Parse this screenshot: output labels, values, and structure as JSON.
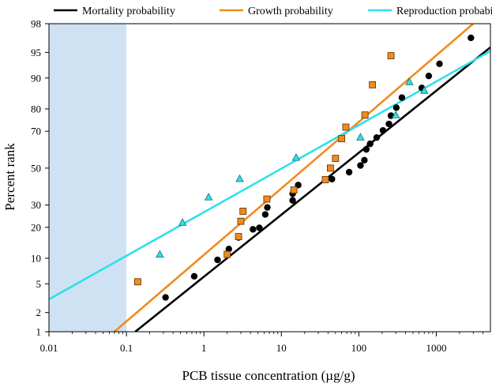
{
  "chart_data": {
    "type": "scatter",
    "title": "",
    "xlabel": "PCB tissue concentration (µg/g)",
    "ylabel": "Percent rank",
    "x_scale": "log",
    "y_scale": "probability",
    "xlim": [
      0.01,
      5000
    ],
    "ylim": [
      1,
      98
    ],
    "x_ticks": [
      0.01,
      0.1,
      1,
      10,
      100,
      1000
    ],
    "x_tick_labels": [
      "0.01",
      "0.1",
      "1",
      "10",
      "100",
      "1000"
    ],
    "y_ticks": [
      1,
      2,
      5,
      10,
      20,
      30,
      50,
      70,
      80,
      90,
      95,
      98
    ],
    "y_tick_labels": [
      "1",
      "2",
      "5",
      "10",
      "20",
      "30",
      "50",
      "70",
      "80",
      "90",
      "95",
      "98"
    ],
    "shaded_region": {
      "x": [
        0.01,
        0.1
      ],
      "color": "#cfe2f3"
    },
    "legend_position": "top",
    "legend": [
      {
        "label": "Mortality probability",
        "color": "#000000"
      },
      {
        "label": "Growth probability",
        "color": "#f28a1e"
      },
      {
        "label": "Reproduction probability",
        "color": "#2ee0e8"
      }
    ],
    "series": [
      {
        "name": "Mortality probability",
        "marker": "circle",
        "color": "#000000",
        "points": [
          [
            0.32,
            3.3
          ],
          [
            0.75,
            6.2
          ],
          [
            1.5,
            9.6
          ],
          [
            2.1,
            12.5
          ],
          [
            2.8,
            16.2
          ],
          [
            4.3,
            19.2
          ],
          [
            5.2,
            19.8
          ],
          [
            6.2,
            25.5
          ],
          [
            6.6,
            28.8
          ],
          [
            14,
            32.3
          ],
          [
            14,
            35.8
          ],
          [
            16.5,
            40.5
          ],
          [
            45,
            43.8
          ],
          [
            75,
            47.7
          ],
          [
            105,
            51.5
          ],
          [
            118,
            54.5
          ],
          [
            125,
            60.5
          ],
          [
            140,
            63.5
          ],
          [
            170,
            66.8
          ],
          [
            205,
            70.4
          ],
          [
            245,
            73.5
          ],
          [
            260,
            77.2
          ],
          [
            305,
            80.5
          ],
          [
            360,
            84.2
          ],
          [
            650,
            87.3
          ],
          [
            800,
            90.5
          ],
          [
            1100,
            93.1
          ],
          [
            2800,
            96.8
          ]
        ],
        "fit_line": [
          [
            0.13,
            1
          ],
          [
            5000,
            95.7
          ]
        ]
      },
      {
        "name": "Growth probability",
        "marker": "square",
        "color": "#f28a1e",
        "points": [
          [
            0.14,
            5.3
          ],
          [
            2.0,
            11.0
          ],
          [
            2.8,
            16.5
          ],
          [
            3.0,
            22.5
          ],
          [
            3.2,
            27.0
          ],
          [
            6.5,
            33.0
          ],
          [
            14.5,
            37.8
          ],
          [
            37,
            43.5
          ],
          [
            43,
            50.0
          ],
          [
            50,
            55.5
          ],
          [
            60,
            66.2
          ],
          [
            68,
            72.0
          ],
          [
            120,
            77.5
          ],
          [
            150,
            88.2
          ],
          [
            260,
            94.5
          ]
        ],
        "fit_line": [
          [
            0.07,
            1
          ],
          [
            3000,
            98
          ]
        ]
      },
      {
        "name": "Reproduction probability",
        "marker": "triangle",
        "color": "#2ee0e8",
        "points": [
          [
            0.27,
            11.0
          ],
          [
            0.53,
            22.0
          ],
          [
            1.15,
            34.0
          ],
          [
            2.9,
            44.0
          ],
          [
            15.5,
            56.0
          ],
          [
            105,
            67.0
          ],
          [
            300,
            77.5
          ],
          [
            450,
            89.0
          ],
          [
            700,
            86.5
          ]
        ],
        "fit_line": [
          [
            0.01,
            3.1
          ],
          [
            5000,
            95.2
          ]
        ]
      }
    ]
  }
}
